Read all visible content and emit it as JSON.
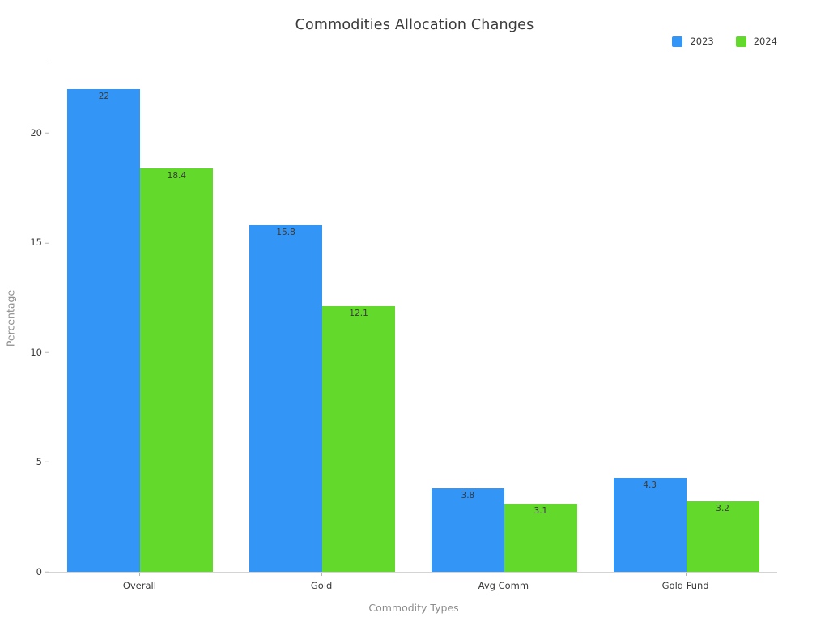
{
  "chart_data": {
    "type": "bar",
    "title": "Commodities Allocation Changes",
    "categories": [
      "Overall",
      "Gold",
      "Avg Comm",
      "Gold Fund"
    ],
    "series": [
      {
        "name": "2023",
        "color": "#3395f6",
        "values": [
          22,
          15.8,
          3.8,
          4.3
        ],
        "labels": [
          "22",
          "15.8",
          "3.8",
          "4.3"
        ]
      },
      {
        "name": "2024",
        "color": "#62d92b",
        "values": [
          18.4,
          12.1,
          3.1,
          3.2
        ],
        "labels": [
          "18.4",
          "12.1",
          "3.1",
          "3.2"
        ]
      }
    ],
    "xlabel": "Commodity Types",
    "ylabel": "Percentage",
    "yticks": [
      0,
      5,
      10,
      15,
      20
    ],
    "ylim": [
      0,
      23.3
    ],
    "grid": false,
    "legend_position": "top-right",
    "bar_value_label_position": "inside-top",
    "text_color": "#3a3a3a",
    "axis_title_color": "#8c8c8c",
    "spine_color": "#d4d4d4"
  }
}
